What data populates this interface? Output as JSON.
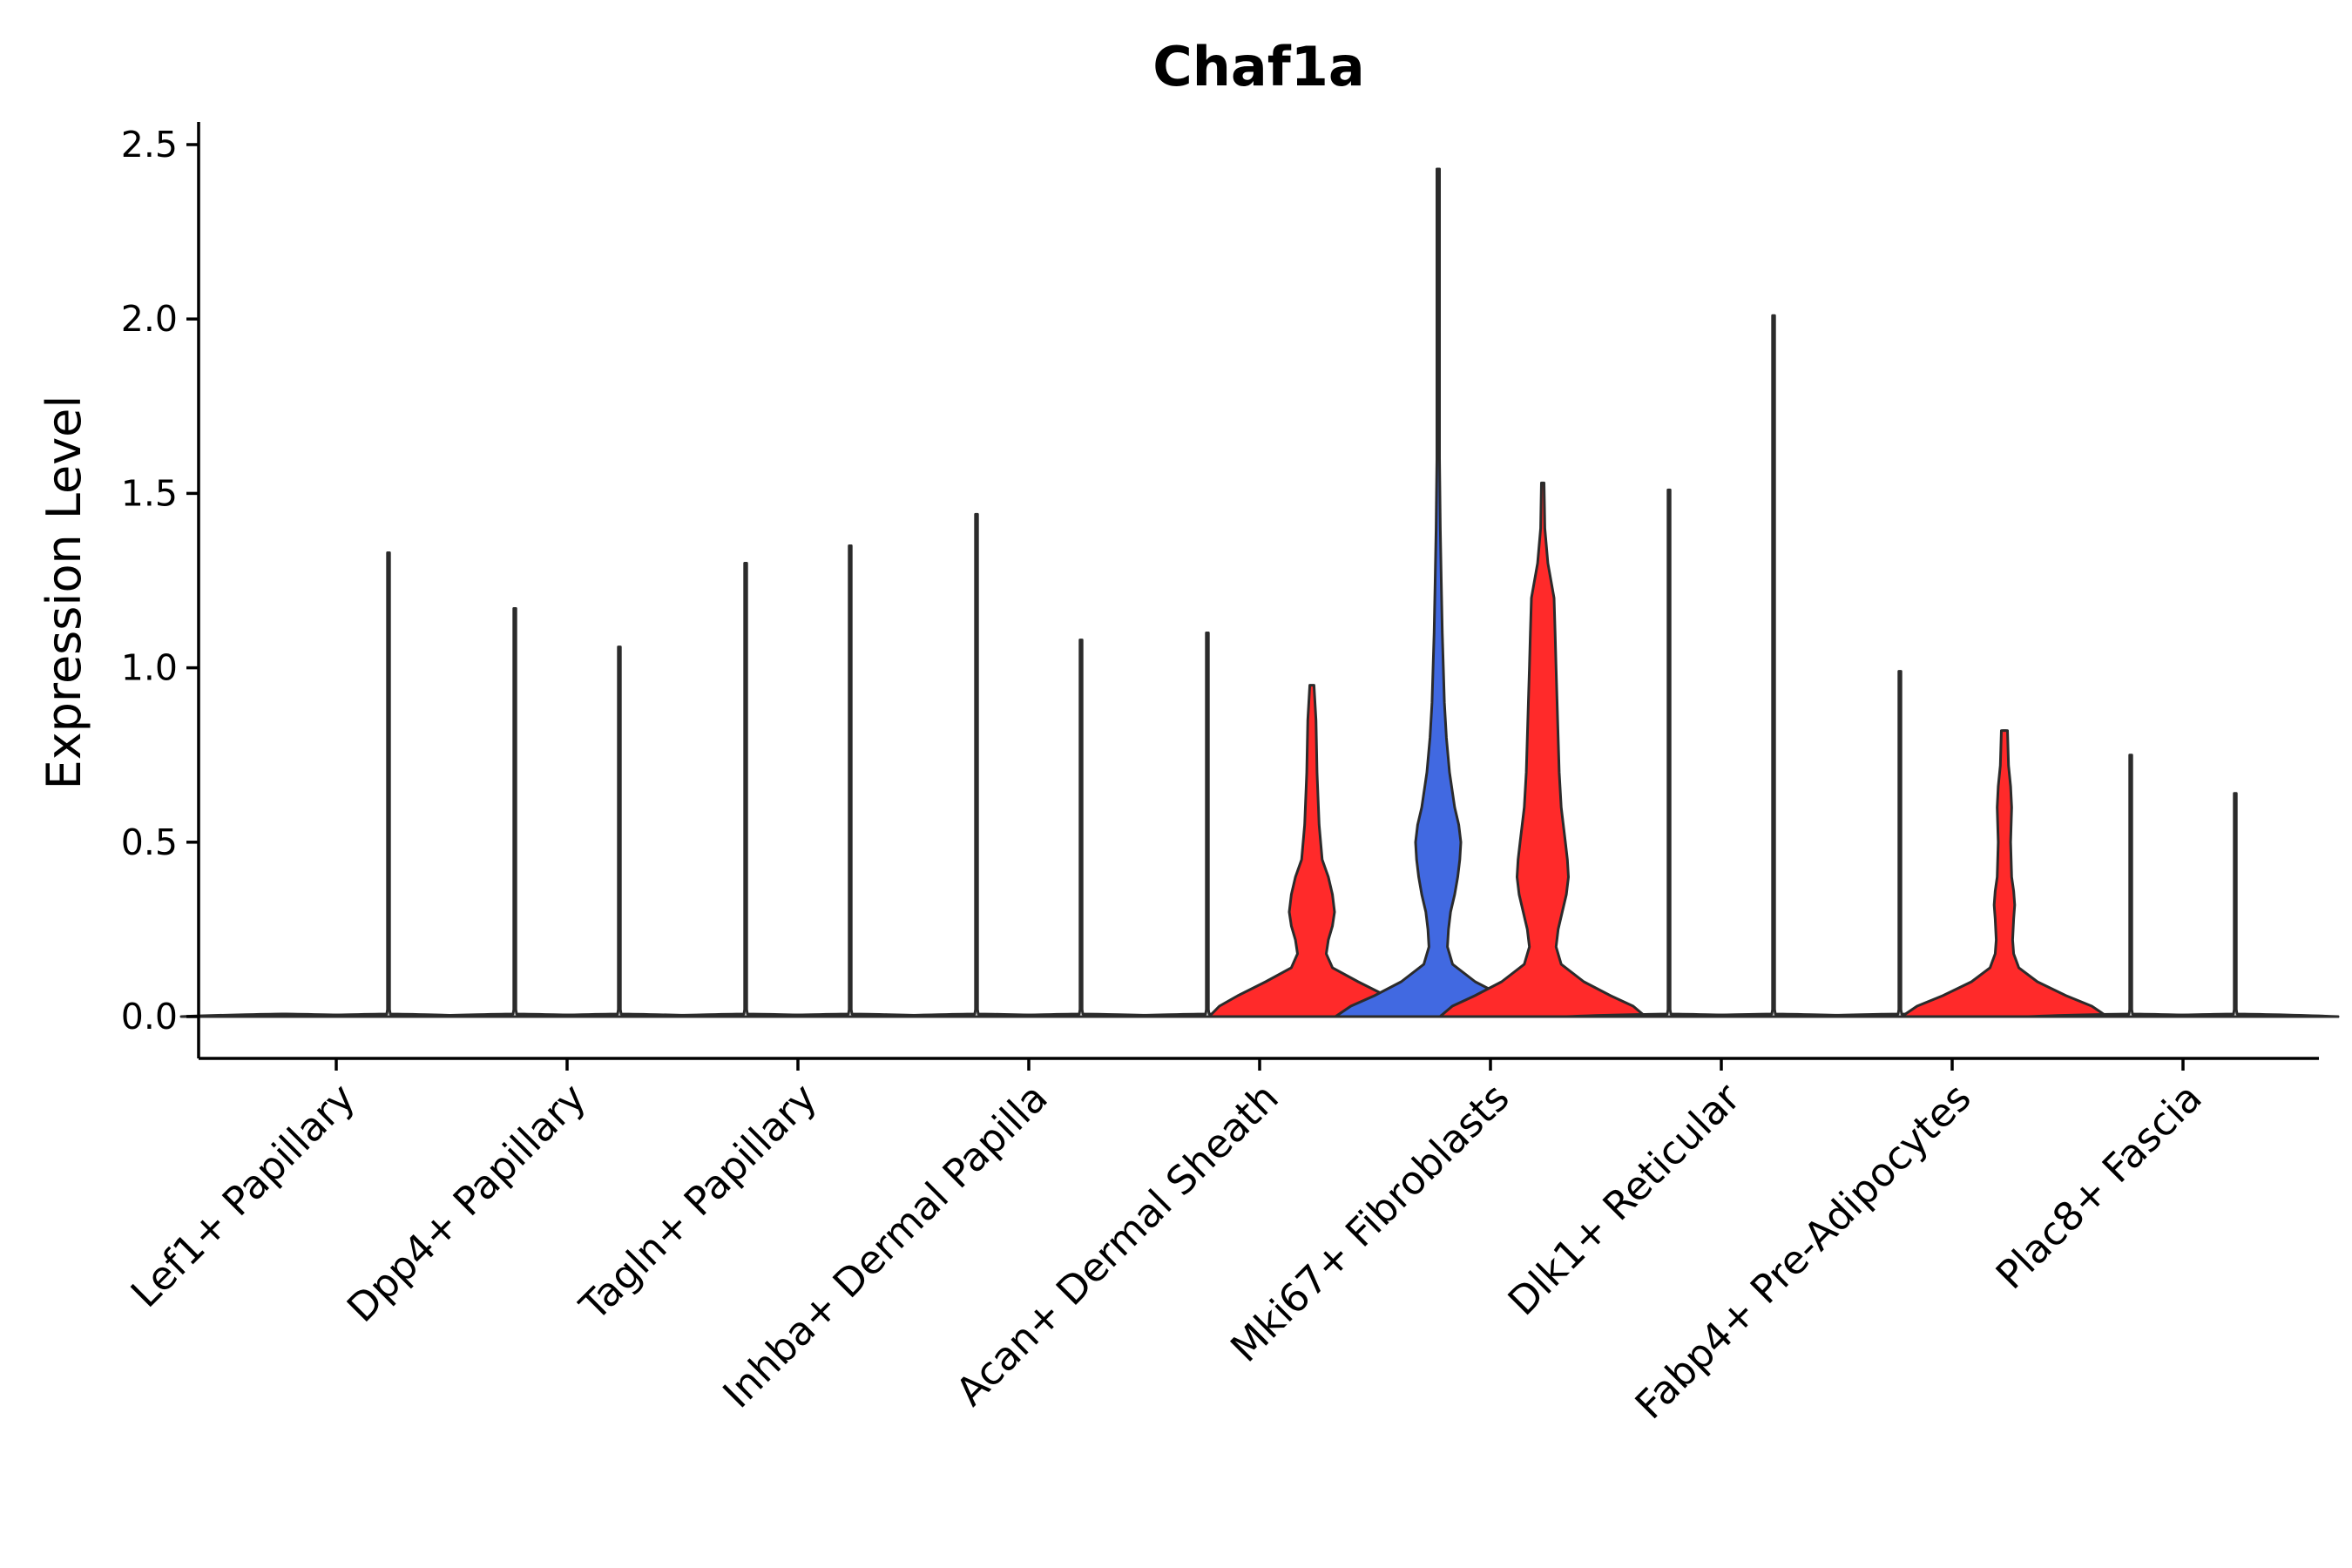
{
  "chart_data": {
    "type": "violin",
    "title": "Chaf1a",
    "ylabel": "Expression Level",
    "xlabel": "",
    "ylim": [
      -0.12,
      2.56
    ],
    "yticks": [
      "0.0",
      "0.5",
      "1.0",
      "1.5",
      "2.0",
      "2.5"
    ],
    "grid": false,
    "legend": "none",
    "colors": {
      "low": "#4169e1",
      "high": "#ff2a2a",
      "zero": "#ffffff",
      "outline": "#2b2b2b"
    },
    "categories": [
      "Lef1+ Papillary",
      "Dpp4+ Papillary",
      "Tagln+ Papillary",
      "Inhba+ Dermal Papilla",
      "Acan+ Dermal Sheath",
      "Mki67+ Fibroblasts",
      "Dlk1+ Reticular",
      "Fabp4+ Pre-Adipocytes",
      "Plac8+ Fascia"
    ],
    "violins": [
      {
        "category_index": 0,
        "side": "left",
        "max": 0.0,
        "fill": "zero",
        "profile": []
      },
      {
        "category_index": 0,
        "side": "right",
        "max": 1.33,
        "fill": "zero",
        "profile": []
      },
      {
        "category_index": 1,
        "side": "left",
        "max": 1.17,
        "fill": "zero",
        "profile": []
      },
      {
        "category_index": 1,
        "side": "right",
        "max": 1.06,
        "fill": "zero",
        "profile": []
      },
      {
        "category_index": 2,
        "side": "left",
        "max": 1.3,
        "fill": "zero",
        "profile": []
      },
      {
        "category_index": 2,
        "side": "right",
        "max": 1.35,
        "fill": "zero",
        "profile": []
      },
      {
        "category_index": 3,
        "side": "left",
        "max": 1.44,
        "fill": "zero",
        "profile": []
      },
      {
        "category_index": 3,
        "side": "right",
        "max": 1.08,
        "fill": "zero",
        "profile": []
      },
      {
        "category_index": 4,
        "side": "left",
        "max": 1.1,
        "fill": "zero",
        "profile": []
      },
      {
        "category_index": 4,
        "side": "right",
        "max": 0.95,
        "fill": "high",
        "profile": [
          [
            0,
            1.0
          ],
          [
            0.03,
            0.9
          ],
          [
            0.06,
            0.72
          ],
          [
            0.1,
            0.45
          ],
          [
            0.14,
            0.2
          ],
          [
            0.18,
            0.14
          ],
          [
            0.22,
            0.16
          ],
          [
            0.26,
            0.2
          ],
          [
            0.3,
            0.22
          ],
          [
            0.35,
            0.2
          ],
          [
            0.4,
            0.16
          ],
          [
            0.45,
            0.1
          ],
          [
            0.55,
            0.07
          ],
          [
            0.7,
            0.05
          ],
          [
            0.85,
            0.04
          ],
          [
            0.95,
            0.02
          ]
        ]
      },
      {
        "category_index": 5,
        "side": "left",
        "max": 2.43,
        "fill": "low",
        "profile": [
          [
            0,
            1.0
          ],
          [
            0.03,
            0.85
          ],
          [
            0.06,
            0.62
          ],
          [
            0.1,
            0.36
          ],
          [
            0.15,
            0.14
          ],
          [
            0.2,
            0.09
          ],
          [
            0.25,
            0.1
          ],
          [
            0.3,
            0.12
          ],
          [
            0.35,
            0.16
          ],
          [
            0.4,
            0.19
          ],
          [
            0.45,
            0.21
          ],
          [
            0.5,
            0.22
          ],
          [
            0.55,
            0.2
          ],
          [
            0.6,
            0.16
          ],
          [
            0.7,
            0.11
          ],
          [
            0.8,
            0.08
          ],
          [
            0.9,
            0.06
          ],
          [
            1.0,
            0.05
          ],
          [
            1.1,
            0.04
          ],
          [
            1.25,
            0.03
          ],
          [
            1.4,
            0.02
          ],
          [
            1.6,
            0.01
          ],
          [
            2.0,
            0.005
          ],
          [
            2.43,
            0.004
          ]
        ]
      },
      {
        "category_index": 5,
        "side": "right",
        "max": 1.53,
        "fill": "high",
        "profile": [
          [
            0,
            1.0
          ],
          [
            0.03,
            0.88
          ],
          [
            0.06,
            0.66
          ],
          [
            0.1,
            0.4
          ],
          [
            0.15,
            0.18
          ],
          [
            0.2,
            0.13
          ],
          [
            0.25,
            0.15
          ],
          [
            0.3,
            0.19
          ],
          [
            0.35,
            0.23
          ],
          [
            0.4,
            0.25
          ],
          [
            0.45,
            0.24
          ],
          [
            0.5,
            0.22
          ],
          [
            0.55,
            0.2
          ],
          [
            0.6,
            0.18
          ],
          [
            0.7,
            0.16
          ],
          [
            0.8,
            0.15
          ],
          [
            0.9,
            0.14
          ],
          [
            1.0,
            0.13
          ],
          [
            1.1,
            0.12
          ],
          [
            1.2,
            0.11
          ],
          [
            1.3,
            0.05
          ],
          [
            1.4,
            0.02
          ],
          [
            1.53,
            0.01
          ]
        ]
      },
      {
        "category_index": 6,
        "side": "left",
        "max": 1.51,
        "fill": "zero",
        "profile": []
      },
      {
        "category_index": 6,
        "side": "right",
        "max": 2.01,
        "fill": "zero",
        "profile": []
      },
      {
        "category_index": 7,
        "side": "left",
        "max": 0.99,
        "fill": "zero",
        "profile": []
      },
      {
        "category_index": 7,
        "side": "right",
        "max": 0.82,
        "fill": "high",
        "profile": [
          [
            0,
            1.0
          ],
          [
            0.03,
            0.85
          ],
          [
            0.06,
            0.6
          ],
          [
            0.1,
            0.32
          ],
          [
            0.14,
            0.14
          ],
          [
            0.18,
            0.09
          ],
          [
            0.22,
            0.08
          ],
          [
            0.28,
            0.09
          ],
          [
            0.32,
            0.1
          ],
          [
            0.36,
            0.09
          ],
          [
            0.4,
            0.07
          ],
          [
            0.5,
            0.06
          ],
          [
            0.6,
            0.07
          ],
          [
            0.66,
            0.06
          ],
          [
            0.72,
            0.04
          ],
          [
            0.82,
            0.03
          ]
        ]
      },
      {
        "category_index": 8,
        "side": "left",
        "max": 0.75,
        "fill": "zero",
        "profile": []
      },
      {
        "category_index": 8,
        "side": "right",
        "max": 0.64,
        "fill": "zero",
        "profile": []
      }
    ]
  }
}
